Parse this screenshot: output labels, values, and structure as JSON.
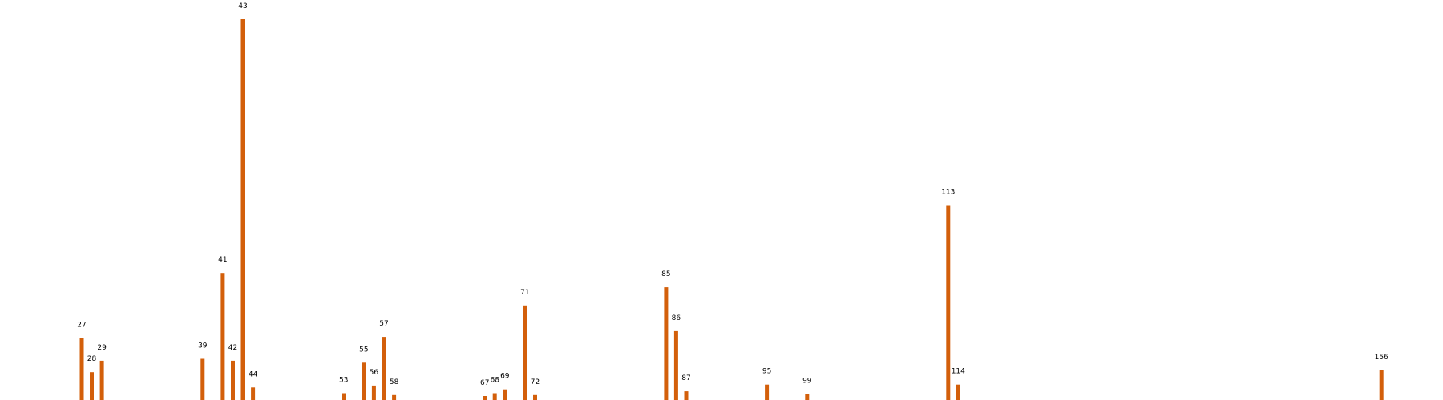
{
  "chart_data": {
    "type": "bar",
    "categories": [
      "27",
      "28",
      "29",
      "39",
      "41",
      "42",
      "43",
      "44",
      "53",
      "55",
      "56",
      "57",
      "58",
      "67",
      "68",
      "69",
      "71",
      "72",
      "85",
      "86",
      "87",
      "95",
      "99",
      "113",
      "114",
      "156"
    ],
    "values": [
      3.3,
      1.5,
      2.1,
      2.2,
      6.7,
      2.1,
      20.0,
      0.7,
      0.4,
      2.0,
      0.8,
      3.35,
      0.3,
      0.25,
      0.4,
      0.6,
      5.0,
      0.3,
      5.95,
      3.65,
      0.5,
      0.85,
      0.35,
      10.25,
      0.85,
      1.6
    ],
    "title": "",
    "xlabel": "",
    "ylabel": "",
    "xlim": [
      20,
      161
    ],
    "ylim": [
      0,
      20
    ],
    "grid": false,
    "axes_visible": false,
    "colors": {
      "bar": "#d35f0a",
      "label": "#000000"
    }
  }
}
